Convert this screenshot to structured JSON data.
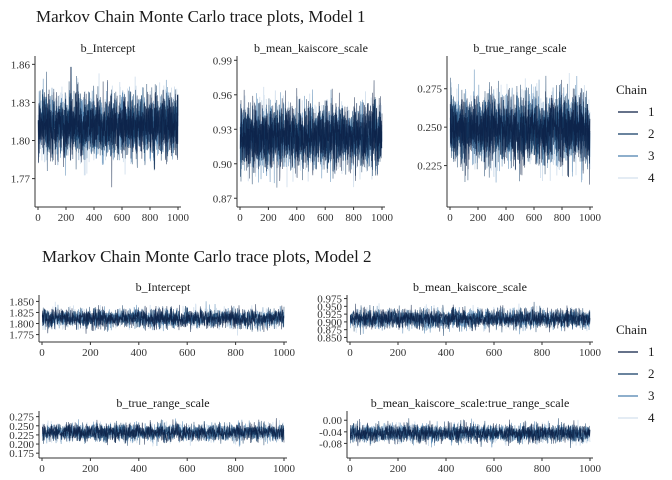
{
  "chart_data": [
    {
      "type": "line",
      "title": "Markov Chain Monte Carlo trace plots, Model 1",
      "legend": {
        "title": "Chain",
        "entries": [
          "1",
          "2",
          "3",
          "4"
        ],
        "colors": [
          "#0b1f44",
          "#103a63",
          "#4a7fae",
          "#d4e1ee"
        ],
        "placement": "right"
      },
      "panels": [
        {
          "name": "b_Intercept",
          "xlim": [
            0,
            1000
          ],
          "ylim": [
            1.75,
            1.865
          ],
          "xticks": [
            0,
            200,
            400,
            600,
            800,
            1000
          ],
          "xtick_labels": [
            "0",
            "200",
            "400",
            "600",
            "800",
            "1000"
          ],
          "yticks": [
            1.77,
            1.8,
            1.83,
            1.86
          ],
          "ytick_labels": [
            "1.77",
            "1.80",
            "1.83",
            "1.86"
          ],
          "series": [
            {
              "center": 1.812,
              "sd": 0.012,
              "lo": 1.755,
              "hi": 1.858
            },
            {
              "center": 1.812,
              "sd": 0.013,
              "lo": 1.755,
              "hi": 1.858
            },
            {
              "center": 1.812,
              "sd": 0.012,
              "lo": 1.755,
              "hi": 1.858
            },
            {
              "center": 1.812,
              "sd": 0.012,
              "lo": 1.755,
              "hi": 1.858
            }
          ]
        },
        {
          "name": "b_mean_kaiscore_scale",
          "xlim": [
            0,
            1000
          ],
          "ylim": [
            0.865,
            0.992
          ],
          "xticks": [
            0,
            200,
            400,
            600,
            800,
            1000
          ],
          "xtick_labels": [
            "0",
            "200",
            "400",
            "600",
            "800",
            "1000"
          ],
          "yticks": [
            0.87,
            0.9,
            0.93,
            0.96,
            0.99
          ],
          "ytick_labels": [
            "0.87",
            "0.90",
            "0.93",
            "0.96",
            "0.99"
          ],
          "series": [
            {
              "center": 0.924,
              "sd": 0.014,
              "lo": 0.875,
              "hi": 0.988
            },
            {
              "center": 0.924,
              "sd": 0.014,
              "lo": 0.875,
              "hi": 0.988
            },
            {
              "center": 0.924,
              "sd": 0.013,
              "lo": 0.875,
              "hi": 0.988
            },
            {
              "center": 0.924,
              "sd": 0.014,
              "lo": 0.875,
              "hi": 0.988
            }
          ]
        },
        {
          "name": "b_true_range_scale",
          "xlim": [
            0,
            1000
          ],
          "ylim": [
            0.2,
            0.295
          ],
          "xticks": [
            0,
            200,
            400,
            600,
            800,
            1000
          ],
          "xtick_labels": [
            "0",
            "200",
            "400",
            "600",
            "800",
            "1000"
          ],
          "yticks": [
            0.225,
            0.25,
            0.275
          ],
          "ytick_labels": [
            "0.225",
            "0.250",
            "0.275"
          ],
          "series": [
            {
              "center": 0.249,
              "sd": 0.011,
              "lo": 0.205,
              "hi": 0.292
            },
            {
              "center": 0.249,
              "sd": 0.011,
              "lo": 0.205,
              "hi": 0.292
            },
            {
              "center": 0.249,
              "sd": 0.011,
              "lo": 0.205,
              "hi": 0.292
            },
            {
              "center": 0.249,
              "sd": 0.011,
              "lo": 0.205,
              "hi": 0.292
            }
          ]
        }
      ]
    },
    {
      "type": "line",
      "title": "Markov Chain Monte Carlo trace plots, Model 2",
      "legend": {
        "title": "Chain",
        "entries": [
          "1",
          "2",
          "3",
          "4"
        ],
        "colors": [
          "#0b1f44",
          "#103a63",
          "#4a7fae",
          "#d4e1ee"
        ],
        "placement": "right"
      },
      "panels": [
        {
          "name": "b_Intercept",
          "xlim": [
            0,
            1000
          ],
          "ylim": [
            1.765,
            1.86
          ],
          "xticks": [
            0,
            200,
            400,
            600,
            800,
            1000
          ],
          "xtick_labels": [
            "0",
            "200",
            "400",
            "600",
            "800",
            "1000"
          ],
          "yticks": [
            1.775,
            1.8,
            1.825,
            1.85
          ],
          "ytick_labels": [
            "1.775",
            "1.800",
            "1.825",
            "1.850"
          ],
          "series": [
            {
              "center": 1.812,
              "sd": 0.011,
              "lo": 1.77,
              "hi": 1.855
            },
            {
              "center": 1.812,
              "sd": 0.011,
              "lo": 1.77,
              "hi": 1.855
            },
            {
              "center": 1.812,
              "sd": 0.011,
              "lo": 1.77,
              "hi": 1.855
            },
            {
              "center": 1.812,
              "sd": 0.011,
              "lo": 1.77,
              "hi": 1.855
            }
          ]
        },
        {
          "name": "b_mean_kaiscore_scale",
          "xlim": [
            0,
            1000
          ],
          "ylim": [
            0.845,
            0.98
          ],
          "xticks": [
            0,
            200,
            400,
            600,
            800,
            1000
          ],
          "xtick_labels": [
            "0",
            "200",
            "400",
            "600",
            "800",
            "1000"
          ],
          "yticks": [
            0.85,
            0.875,
            0.9,
            0.925,
            0.95,
            0.975
          ],
          "ytick_labels": [
            "0.850",
            "0.875",
            "0.900",
            "0.925",
            "0.950",
            "0.975"
          ],
          "series": [
            {
              "center": 0.91,
              "sd": 0.016,
              "lo": 0.855,
              "hi": 0.972
            },
            {
              "center": 0.91,
              "sd": 0.016,
              "lo": 0.855,
              "hi": 0.972
            },
            {
              "center": 0.91,
              "sd": 0.016,
              "lo": 0.855,
              "hi": 0.972
            },
            {
              "center": 0.91,
              "sd": 0.016,
              "lo": 0.855,
              "hi": 0.972
            }
          ]
        },
        {
          "name": "b_true_range_scale",
          "xlim": [
            0,
            1000
          ],
          "ylim": [
            0.17,
            0.285
          ],
          "xticks": [
            0,
            200,
            400,
            600,
            800,
            1000
          ],
          "xtick_labels": [
            "0",
            "200",
            "400",
            "600",
            "800",
            "1000"
          ],
          "yticks": [
            0.175,
            0.2,
            0.225,
            0.25,
            0.275
          ],
          "ytick_labels": [
            "0.175",
            "0.200",
            "0.225",
            "0.250",
            "0.275"
          ],
          "series": [
            {
              "center": 0.232,
              "sd": 0.012,
              "lo": 0.18,
              "hi": 0.28
            },
            {
              "center": 0.232,
              "sd": 0.012,
              "lo": 0.18,
              "hi": 0.28
            },
            {
              "center": 0.232,
              "sd": 0.012,
              "lo": 0.18,
              "hi": 0.28
            },
            {
              "center": 0.232,
              "sd": 0.012,
              "lo": 0.18,
              "hi": 0.28
            }
          ]
        },
        {
          "name": "b_mean_kaiscore_scale:true_range_scale",
          "xlim": [
            0,
            1000
          ],
          "ylim": [
            -0.12,
            0.025
          ],
          "xticks": [
            0,
            200,
            400,
            600,
            800,
            1000
          ],
          "xtick_labels": [
            "0",
            "200",
            "400",
            "600",
            "800",
            "1000"
          ],
          "yticks": [
            -0.08,
            -0.04,
            0.0
          ],
          "ytick_labels": [
            "-0.08",
            "-0.04",
            "0.00"
          ],
          "series": [
            {
              "center": -0.045,
              "sd": 0.016,
              "lo": -0.11,
              "hi": 0.018
            },
            {
              "center": -0.045,
              "sd": 0.016,
              "lo": -0.11,
              "hi": 0.018
            },
            {
              "center": -0.045,
              "sd": 0.016,
              "lo": -0.11,
              "hi": 0.018
            },
            {
              "center": -0.045,
              "sd": 0.016,
              "lo": -0.11,
              "hi": 0.018
            }
          ]
        }
      ]
    }
  ]
}
